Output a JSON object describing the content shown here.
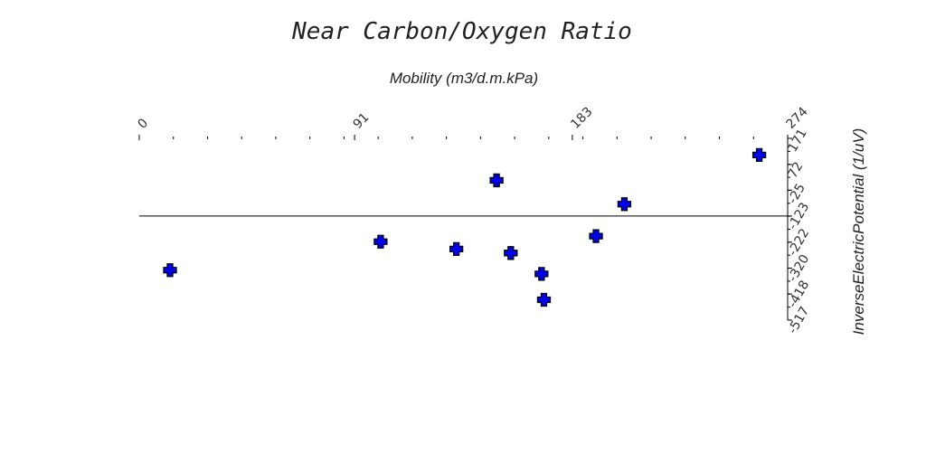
{
  "chart_data": {
    "type": "scatter",
    "title": "Near Carbon/Oxygen Ratio",
    "xlabel": "Mobility (m3/d.m.kPa)",
    "ylabel": "InverseElectricPotential (1/uV)",
    "xlim": [
      0,
      274
    ],
    "ylim": [
      -517,
      171
    ],
    "x_tick_labels": [
      "0",
      "91",
      "183",
      "274"
    ],
    "x_tick_values": [
      0,
      91,
      183,
      274
    ],
    "y_tick_labels": [
      "171",
      "72",
      "-25",
      "-123",
      "-222",
      "-320",
      "-418",
      "-517"
    ],
    "y_tick_values": [
      171,
      72,
      -25,
      -123,
      -222,
      -320,
      -418,
      -517
    ],
    "x_axis_position": "top",
    "y_axis_position": "right",
    "baseline_y": -123,
    "marker": "plus",
    "marker_color": "#0000ee",
    "grid": false,
    "series": [
      {
        "points": [
          {
            "x": 13,
            "y": -328
          },
          {
            "x": 102,
            "y": -220
          },
          {
            "x": 134,
            "y": -248
          },
          {
            "x": 151,
            "y": 12
          },
          {
            "x": 157,
            "y": -263
          },
          {
            "x": 170,
            "y": -342
          },
          {
            "x": 171,
            "y": -440
          },
          {
            "x": 193,
            "y": -199
          },
          {
            "x": 205,
            "y": -78
          },
          {
            "x": 262,
            "y": 108
          }
        ]
      }
    ]
  }
}
